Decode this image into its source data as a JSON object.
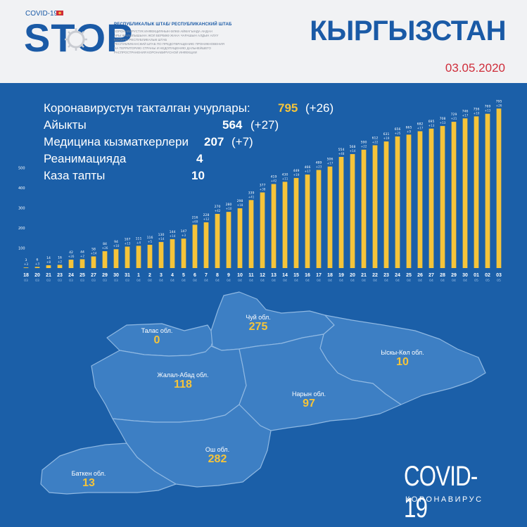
{
  "header": {
    "logo_small": "COVID-19",
    "logo_text": "STOP",
    "hq_title": "РЕСПУБЛИКАЛЫК ШТАБ/ РЕСПУБЛИКАНСКИЙ ШТАБ",
    "hq_lines": [
      "КОРОНАВИРУСТУК ИНФЕКЦИЯНЫН ӨЛКӨ АЙМАГЫНДА АНДАН",
      "АРЫ ЖАЙЫЛЫШЫНА ЖОЛ БЕРБӨӨ ЖАНА ЧАРАШЫН АЛДЫН АЛУУ",
      "БОЮНЧА РЕСПУБЛИКАЛЫК ШТАБ",
      "РЕСПУБЛИКАНСКИЙ ШТАБ ПО ПРЕДОТВРАЩЕНИЮ ПРОНИКНОВЕНИЯ",
      "НА ТЕРРИТОРИЮ СТРАНЫ И НЕДОПУЩЕНИЮ ДАЛЬНЕЙШЕГО",
      "РАСПРОСТРАНЕНИЯ КОРОНАВИРУСНОЙ ИНФЕКЦИИ"
    ],
    "country": "КЫРГЫЗСТАН",
    "date": "03.05.2020"
  },
  "stats": [
    {
      "label": "Коронавирустун такталган учурлары:",
      "value": "795",
      "delta": "(+26)"
    },
    {
      "label": "Айыкты",
      "value": "564",
      "delta": "(+27)"
    },
    {
      "label": "Медицина кызматкерлери",
      "value": "207",
      "delta": "(+7)"
    },
    {
      "label": "Реанимацияда",
      "value": "4",
      "delta": ""
    },
    {
      "label": "Каза тапты",
      "value": "10",
      "delta": ""
    }
  ],
  "colors": {
    "bar": "#f5c43a",
    "accent": "#f5c43a",
    "background": "#1b5fa8",
    "map_fill": "#3d7fc4",
    "map_stroke": "#8fb8e2"
  },
  "chart_data": {
    "type": "bar",
    "categories": [
      "18",
      "20",
      "21",
      "23",
      "24",
      "25",
      "27",
      "29",
      "30",
      "31",
      "1",
      "2",
      "3",
      "4",
      "5",
      "6",
      "7",
      "8",
      "9",
      "10",
      "11",
      "12",
      "13",
      "14",
      "15",
      "16",
      "17",
      "18",
      "19",
      "20",
      "21",
      "22",
      "23",
      "24",
      "25",
      "26",
      "27",
      "28",
      "29",
      "30",
      "01",
      "02",
      "03"
    ],
    "months": [
      "03",
      "03",
      "03",
      "03",
      "03",
      "03",
      "03",
      "03",
      "03",
      "03",
      "04",
      "04",
      "04",
      "04",
      "04",
      "04",
      "04",
      "04",
      "04",
      "04",
      "04",
      "04",
      "04",
      "04",
      "04",
      "04",
      "04",
      "04",
      "04",
      "04",
      "04",
      "04",
      "04",
      "04",
      "04",
      "04",
      "04",
      "04",
      "04",
      "04",
      "05",
      "05",
      "05"
    ],
    "values": [
      3,
      6,
      14,
      16,
      42,
      44,
      58,
      84,
      94,
      107,
      111,
      116,
      130,
      144,
      147,
      216,
      228,
      270,
      280,
      298,
      339,
      377,
      419,
      430,
      449,
      466,
      489,
      506,
      554,
      568,
      590,
      612,
      631,
      656,
      665,
      682,
      695,
      708,
      729,
      746,
      756,
      769,
      795
    ],
    "increments": [
      "+3",
      "+3",
      "+8",
      "+2",
      "+26",
      "+2",
      "+14",
      "+26",
      "+10",
      "+13",
      "+4",
      "+5",
      "+14",
      "+14",
      "+3",
      "+69",
      "+12",
      "+42",
      "+10",
      "+18",
      "+41",
      "+38",
      "+42",
      "+11",
      "+19",
      "+17",
      "+23",
      "+17",
      "+48",
      "+14",
      "+22",
      "+22",
      "+19",
      "+25",
      "+9",
      "+17",
      "+13",
      "+13",
      "+21",
      "+17",
      "+10",
      "+13",
      "+26"
    ],
    "y_ticks": [
      100,
      200,
      300,
      400,
      500
    ],
    "ylim": [
      0,
      810
    ],
    "grid": false
  },
  "regions": [
    {
      "name": "Талас обл.",
      "value": "0"
    },
    {
      "name": "Чуй обл.",
      "value": "275"
    },
    {
      "name": "Ыскы-Көл обл.",
      "value": "10"
    },
    {
      "name": "Жалал-Абад обл.",
      "value": "118"
    },
    {
      "name": "Нарын обл.",
      "value": "97"
    },
    {
      "name": "Ош обл.",
      "value": "282"
    },
    {
      "name": "Баткен обл.",
      "value": "13"
    }
  ],
  "footer": {
    "title": "COVID-19",
    "subtitle": "КОРОНАВИРУС"
  }
}
